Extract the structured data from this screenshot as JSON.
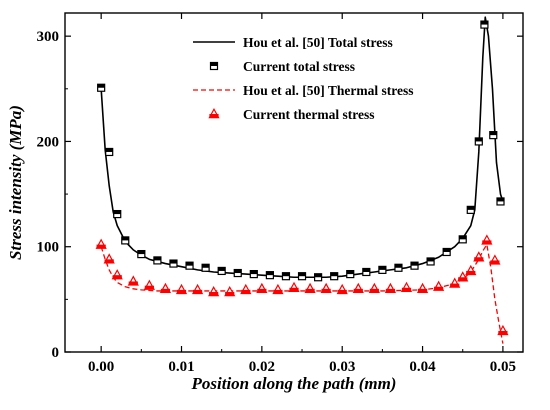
{
  "chart_data": {
    "type": "line",
    "title": "",
    "xlabel": "Position along the path (mm)",
    "ylabel": "Stress intensity (MPa)",
    "xlim": [
      -0.0045,
      0.0525
    ],
    "ylim": [
      0,
      322
    ],
    "x_ticks": [
      0.0,
      0.01,
      0.02,
      0.03,
      0.04,
      0.05
    ],
    "x_tick_labels": [
      "0.00",
      "0.01",
      "0.02",
      "0.03",
      "0.04",
      "0.05"
    ],
    "y_ticks": [
      0,
      100,
      200,
      300
    ],
    "y_tick_labels": [
      "0",
      "100",
      "200",
      "300"
    ],
    "grid": false,
    "legend_position": "top-center",
    "series": [
      {
        "name": "Hou et al. [50] Total  stress",
        "style": "line-solid",
        "color": "#000000",
        "x": [
          0.0,
          0.0005,
          0.001,
          0.0015,
          0.002,
          0.003,
          0.004,
          0.005,
          0.006,
          0.007,
          0.008,
          0.01,
          0.012,
          0.014,
          0.016,
          0.018,
          0.02,
          0.022,
          0.024,
          0.026,
          0.028,
          0.03,
          0.032,
          0.034,
          0.036,
          0.038,
          0.04,
          0.042,
          0.043,
          0.044,
          0.045,
          0.046,
          0.0465,
          0.047,
          0.0475,
          0.0478,
          0.0482,
          0.0487,
          0.0492,
          0.0497,
          0.05
        ],
        "y": [
          250,
          192,
          158,
          133,
          120,
          105,
          97,
          92,
          88,
          86,
          84,
          81,
          78,
          76,
          75,
          74,
          73,
          72,
          71,
          71,
          71,
          72,
          74,
          76,
          78,
          80,
          84,
          90,
          95,
          100,
          108,
          120,
          135,
          190,
          280,
          318,
          300,
          250,
          180,
          150,
          143
        ]
      },
      {
        "name": "Current total stress",
        "style": "markers",
        "marker": "half-filled-square",
        "color": "#000000",
        "x": [
          0.0,
          0.001,
          0.002,
          0.003,
          0.005,
          0.007,
          0.009,
          0.011,
          0.013,
          0.015,
          0.017,
          0.019,
          0.021,
          0.023,
          0.025,
          0.027,
          0.029,
          0.031,
          0.033,
          0.035,
          0.037,
          0.039,
          0.041,
          0.043,
          0.045,
          0.046,
          0.047,
          0.0477,
          0.0488,
          0.0497
        ],
        "y": [
          251,
          190,
          131,
          106,
          93,
          87,
          84,
          82,
          80,
          77,
          75,
          74,
          73,
          72,
          72,
          71,
          72,
          74,
          76,
          78,
          80,
          82,
          86,
          95,
          107,
          135,
          200,
          311,
          206,
          143
        ]
      },
      {
        "name": "Hou et al. [50] Thermal  stress",
        "style": "line-dashed",
        "color": "#ff0000",
        "x": [
          0.0,
          0.0005,
          0.001,
          0.0015,
          0.002,
          0.003,
          0.004,
          0.005,
          0.007,
          0.01,
          0.015,
          0.02,
          0.025,
          0.03,
          0.035,
          0.04,
          0.042,
          0.044,
          0.045,
          0.046,
          0.047,
          0.0475,
          0.048,
          0.0485,
          0.049,
          0.0495,
          0.05
        ],
        "y": [
          100,
          88,
          78,
          71,
          66,
          62,
          60,
          59,
          58,
          58,
          58,
          58,
          58,
          58,
          58,
          59,
          61,
          65,
          69,
          76,
          88,
          96,
          102,
          80,
          50,
          28,
          8
        ]
      },
      {
        "name": "Current thermal stress",
        "style": "markers",
        "marker": "half-filled-triangle",
        "color": "#ff0000",
        "x": [
          0.0,
          0.001,
          0.002,
          0.004,
          0.006,
          0.008,
          0.01,
          0.012,
          0.014,
          0.016,
          0.018,
          0.02,
          0.022,
          0.024,
          0.026,
          0.028,
          0.03,
          0.032,
          0.034,
          0.036,
          0.038,
          0.04,
          0.042,
          0.044,
          0.045,
          0.046,
          0.047,
          0.048,
          0.049,
          0.05
        ],
        "y": [
          102,
          88,
          73,
          67,
          63,
          60,
          59,
          59,
          57,
          57,
          59,
          60,
          59,
          61,
          60,
          60,
          59,
          60,
          60,
          60,
          61,
          60,
          62,
          65,
          71,
          77,
          90,
          106,
          87,
          20
        ]
      }
    ]
  }
}
